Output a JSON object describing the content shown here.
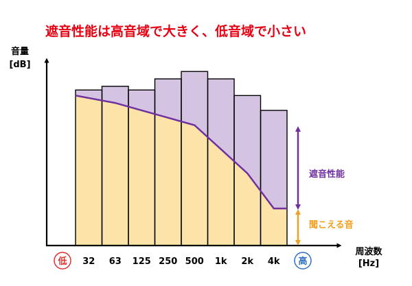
{
  "title": "遮音性能は高音域で大きく、低音域で小さい",
  "colors": {
    "title": "#e60012",
    "bar_fill": "#d5c3e2",
    "heard_fill": "#fce4a8",
    "purple": "#7030a0",
    "orange": "#f0a020",
    "low": "#e03030",
    "high": "#3070c0",
    "axis": "#000000"
  },
  "chart_data": {
    "type": "bar",
    "title": "遮音性能は高音域で大きく、低音域で小さい",
    "ylabel_line1": "音量",
    "ylabel_line2": "[dB]",
    "xlabel_line1": "周波数",
    "xlabel_line2": "[Hz]",
    "categories": [
      "32",
      "63",
      "125",
      "250",
      "500",
      "1k",
      "2k",
      "4k"
    ],
    "low_label": "低",
    "high_label": "高",
    "ylim": [
      0,
      100
    ],
    "series": [
      {
        "name": "遮音性能",
        "values": [
          84,
          86,
          84,
          90,
          94,
          90,
          81,
          73
        ]
      },
      {
        "name": "聞こえる音",
        "values": [
          81,
          77,
          73,
          69,
          65,
          52,
          39,
          20
        ]
      }
    ],
    "legend_placement": "right",
    "grid": false
  }
}
